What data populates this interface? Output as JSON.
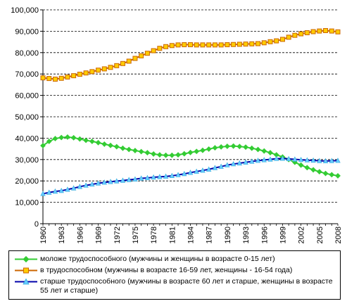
{
  "chart_data": {
    "type": "line",
    "yticks": [
      "0",
      "10,000",
      "20,000",
      "30,000",
      "40,000",
      "50,000",
      "60,000",
      "70,000",
      "80,000",
      "90,000",
      "100,000"
    ],
    "ylim": [
      0,
      100000
    ],
    "xticks": [
      "1960",
      "1963",
      "1966",
      "1969",
      "1972",
      "1975",
      "1978",
      "1981",
      "1984",
      "1987",
      "1990",
      "1993",
      "1996",
      "1999",
      "2002",
      "2005",
      "2008"
    ],
    "xlim": [
      1960,
      2008
    ],
    "grid": "horizontal-dashed",
    "legend_position": "bottom",
    "x": [
      1960,
      1961,
      1962,
      1963,
      1964,
      1965,
      1966,
      1967,
      1968,
      1969,
      1970,
      1971,
      1972,
      1973,
      1974,
      1975,
      1976,
      1977,
      1978,
      1979,
      1980,
      1981,
      1982,
      1983,
      1984,
      1985,
      1986,
      1987,
      1988,
      1989,
      1990,
      1991,
      1992,
      1993,
      1994,
      1995,
      1996,
      1997,
      1998,
      1999,
      2000,
      2001,
      2002,
      2003,
      2004,
      2005,
      2006,
      2007,
      2008
    ],
    "series": [
      {
        "name": "моложе трудоспособного (мужчины и женщины в возрасте 0-15 лет)",
        "color": "#33cc33",
        "marker": "diamond",
        "values": [
          36500,
          38500,
          39800,
          40300,
          40500,
          40200,
          39600,
          39000,
          38500,
          37900,
          37200,
          36600,
          36000,
          35300,
          34700,
          34200,
          33700,
          33200,
          32600,
          32200,
          32000,
          32000,
          32200,
          32700,
          33300,
          33800,
          34300,
          34900,
          35500,
          35900,
          36200,
          36300,
          36100,
          35800,
          35300,
          34700,
          34000,
          33200,
          32200,
          31200,
          30000,
          28700,
          27400,
          26200,
          25200,
          24300,
          23500,
          22900,
          22400
        ]
      },
      {
        "name": "в трудоспособном (мужчины в возрасте 16-59 лет, женщины - 16-54 года)",
        "color": "#cc6600",
        "marker": "square",
        "values": [
          68200,
          67900,
          67600,
          68000,
          68600,
          69200,
          69900,
          70500,
          71100,
          71800,
          72400,
          73100,
          73900,
          74900,
          76000,
          77300,
          78500,
          79700,
          80900,
          82000,
          82800,
          83300,
          83600,
          83700,
          83700,
          83600,
          83600,
          83600,
          83600,
          83600,
          83700,
          83800,
          83900,
          84000,
          84100,
          84200,
          84600,
          85100,
          85500,
          86200,
          87200,
          88100,
          88800,
          89300,
          89800,
          90100,
          90300,
          90100,
          89700
        ]
      },
      {
        "name": "старше трудоспособного (мужчины в возрасте 60 лет и старше, женщины в возрасте 55 лет и старше)",
        "color": "#0000aa",
        "marker": "triangle",
        "values": [
          14000,
          14600,
          15100,
          15400,
          16000,
          16600,
          17300,
          17900,
          18400,
          18900,
          19300,
          19600,
          19900,
          20200,
          20500,
          20800,
          21200,
          21400,
          21700,
          21900,
          22100,
          22400,
          22800,
          23300,
          23900,
          24400,
          24900,
          25400,
          26100,
          26700,
          27400,
          27900,
          28300,
          28700,
          29100,
          29500,
          29800,
          30100,
          30400,
          30500,
          30300,
          30100,
          29900,
          29700,
          29600,
          29400,
          29300,
          29400,
          29500
        ]
      }
    ]
  }
}
